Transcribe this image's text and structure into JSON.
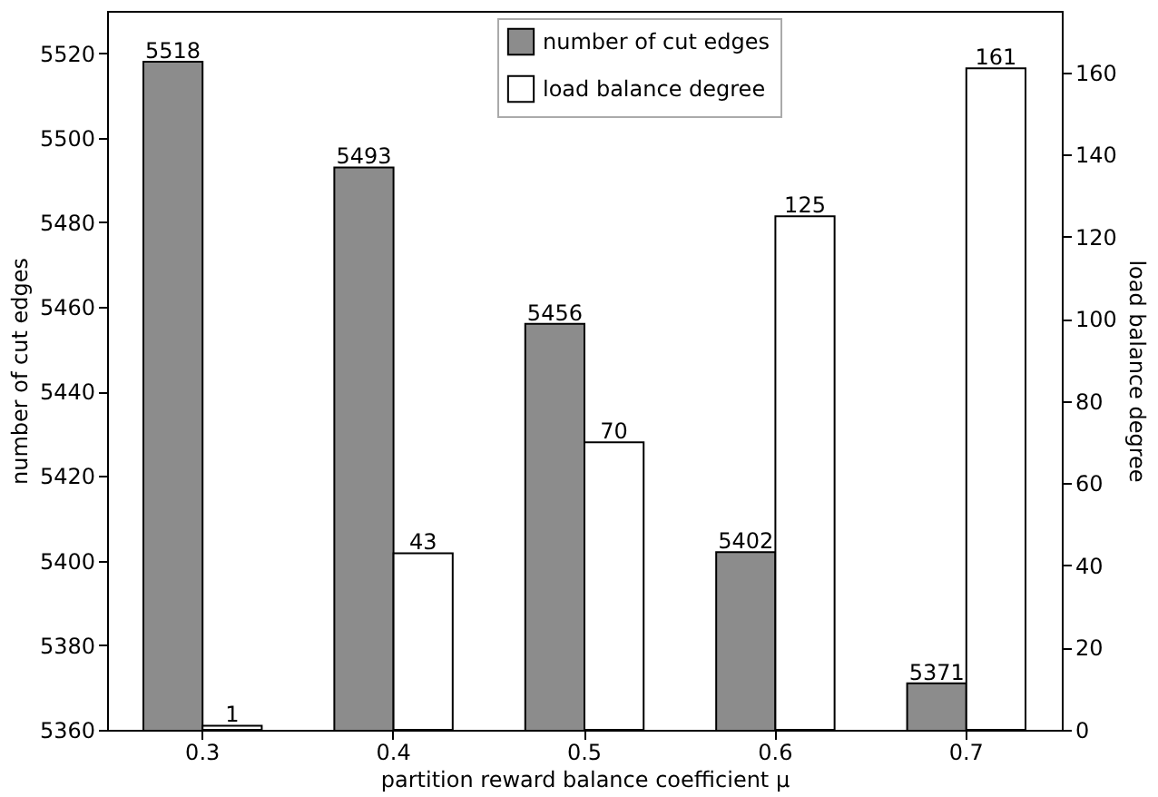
{
  "chart_data": {
    "type": "bar",
    "xlabel": "partition reward balance coefficient μ",
    "ylabel": "number of cut edges",
    "y2label": "load balance degree",
    "categories": [
      "0.3",
      "0.4",
      "0.5",
      "0.6",
      "0.7"
    ],
    "series": [
      {
        "name": "number of cut edges",
        "color": "#8c8c8c",
        "values": [
          5518,
          5493,
          5456,
          5402,
          5371
        ]
      },
      {
        "name": "load balance degree",
        "color": "#ffffff",
        "axis": "y2",
        "values": [
          1,
          43,
          70,
          125,
          161
        ]
      }
    ],
    "ylim": [
      5360,
      5530
    ],
    "yticks": [
      5360,
      5380,
      5400,
      5420,
      5440,
      5460,
      5480,
      5500,
      5520
    ],
    "y2lim": [
      0,
      175
    ],
    "y2ticks": [
      0,
      20,
      40,
      60,
      80,
      100,
      120,
      140,
      160
    ],
    "data_labels": true,
    "legend": "top",
    "grid": false
  }
}
